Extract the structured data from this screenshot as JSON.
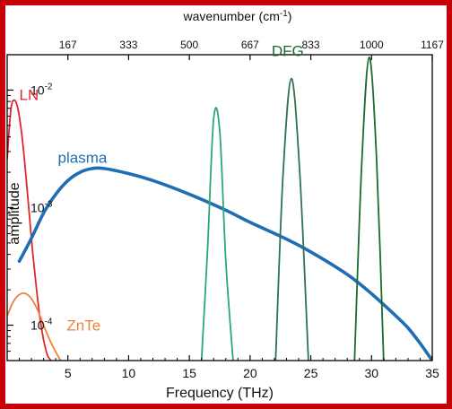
{
  "chart_data": {
    "type": "line",
    "title": "",
    "xlabel": "Frequency (THz)",
    "ylabel": "amplitude",
    "top_xlabel": "wavenumber (cm",
    "top_xlabel_sup": "-1",
    "top_xlabel_end": ")",
    "xlim": [
      0,
      35
    ],
    "ylim": [
      5e-05,
      0.02
    ],
    "yscale": "log",
    "x_ticks": [
      5,
      10,
      15,
      20,
      25,
      30,
      35
    ],
    "x_tick_labels": [
      "5",
      "10",
      "15",
      "20",
      "25",
      "30",
      "35"
    ],
    "top_ticks": [
      5,
      10,
      15,
      20,
      25,
      30,
      35
    ],
    "top_tick_labels": [
      "167",
      "333",
      "500",
      "667",
      "833",
      "1000",
      "1167"
    ],
    "y_ticks": [
      0.0001,
      0.001,
      0.01
    ],
    "y_tick_labels": [
      {
        "base": "10",
        "exp": "-4"
      },
      {
        "base": "10",
        "exp": "-3"
      },
      {
        "base": "10",
        "exp": "-2"
      }
    ],
    "grid": false,
    "series": [
      {
        "name": "LN",
        "color": "#e0252b",
        "label_at": [
          1.8,
          0.0082
        ],
        "x": [
          0.0,
          0.3,
          0.6,
          0.9,
          1.2,
          1.5,
          1.8,
          2.1,
          2.4,
          2.7,
          3.0,
          3.3,
          3.6
        ],
        "y": [
          0.0026,
          0.0068,
          0.0082,
          0.0068,
          0.0042,
          0.0021,
          0.00093,
          0.00042,
          0.00021,
          0.000115,
          7.5e-05,
          5.6e-05,
          5e-05
        ]
      },
      {
        "name": "ZnTe",
        "color": "#f07f3a",
        "label_at": [
          6.3,
          9e-05
        ],
        "x": [
          0.0,
          0.5,
          1.0,
          1.5,
          2.0,
          2.5,
          3.0,
          3.5,
          4.0,
          4.4
        ],
        "y": [
          0.00012,
          0.000158,
          0.000182,
          0.000186,
          0.000168,
          0.000135,
          0.0001,
          7.5e-05,
          5.9e-05,
          5e-05
        ]
      },
      {
        "name": "plasma",
        "color": "#1f6db5",
        "label_at": [
          6.2,
          0.0024
        ],
        "x": [
          1.0,
          2.0,
          3.0,
          4.0,
          5.0,
          6.0,
          7.0,
          8.0,
          10.0,
          12.0,
          15.0,
          18.0,
          20.0,
          23.0,
          25.0,
          28.0,
          30.0,
          32.0,
          33.0,
          34.0,
          35.0
        ],
        "y": [
          0.00035,
          0.00055,
          0.0009,
          0.0013,
          0.0017,
          0.002,
          0.00215,
          0.00215,
          0.00195,
          0.0017,
          0.0013,
          0.00095,
          0.00075,
          0.00054,
          0.00042,
          0.00027,
          0.000185,
          0.00012,
          9.5e-05,
          7e-05,
          5e-05
        ]
      },
      {
        "name": "DFG",
        "color": "#2aa872",
        "x": [
          16.0,
          16.5,
          17.0,
          17.5,
          18.0,
          18.6
        ],
        "y": [
          5e-05,
          0.00045,
          0.0057,
          0.0045,
          0.00035,
          5e-05
        ]
      },
      {
        "name": "DFG",
        "color": "#2e7450",
        "x": [
          22.1,
          22.7,
          23.4,
          24.1,
          24.8
        ],
        "y": [
          5e-05,
          0.0018,
          0.0125,
          0.0019,
          5e-05
        ]
      },
      {
        "name": "DFG",
        "color": "#1e6a2e",
        "label_at": [
          23.1,
          0.0195
        ],
        "x": [
          28.6,
          29.2,
          29.8,
          30.4,
          31.0
        ],
        "y": [
          5e-05,
          0.0025,
          0.019,
          0.0028,
          5e-05
        ]
      }
    ]
  }
}
